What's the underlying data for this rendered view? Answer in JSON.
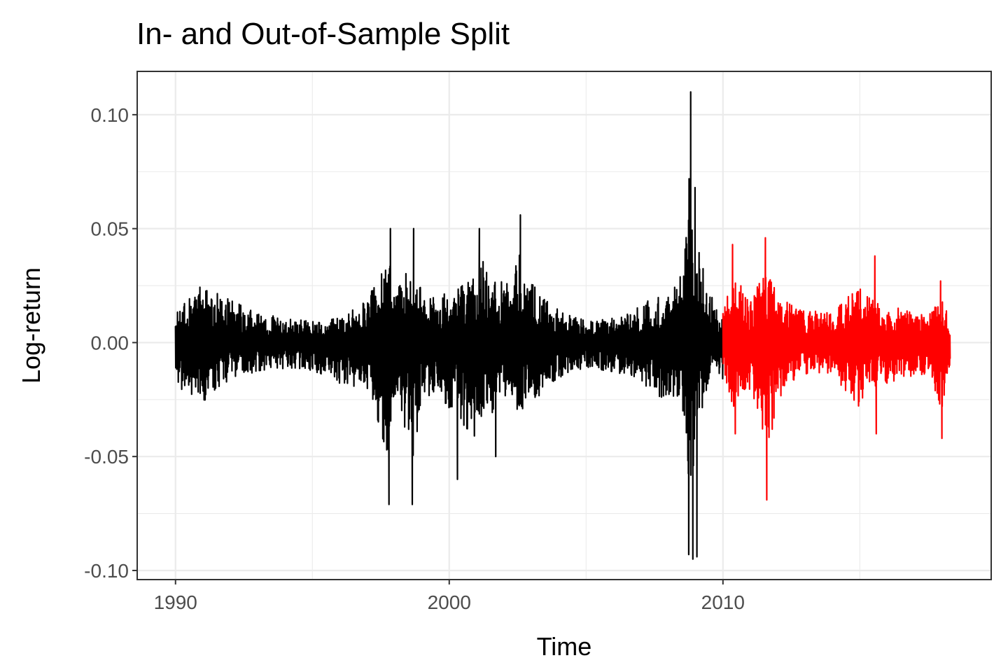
{
  "chart_data": {
    "type": "line",
    "title": "In- and Out-of-Sample Split",
    "xlabel": "Time",
    "ylabel": "Log-return",
    "xlim": [
      1988.6,
      2019.8
    ],
    "ylim": [
      -0.104,
      0.119
    ],
    "x_ticks": [
      1990,
      2000,
      2010
    ],
    "x_tick_labels": [
      "1990",
      "2000",
      "2010"
    ],
    "y_ticks": [
      -0.1,
      -0.05,
      0.0,
      0.05,
      0.1
    ],
    "y_tick_labels": [
      "-0.10",
      "-0.05",
      "0.00",
      "0.05",
      "0.10"
    ],
    "grid": true,
    "legend": "none",
    "series": [
      {
        "segment": "in-sample",
        "color": "#000000",
        "x_range": [
          1990.0,
          2010.0
        ],
        "envelope_x": [
          1990.0,
          1991.0,
          1992.0,
          1993.0,
          1994.0,
          1995.0,
          1996.0,
          1997.0,
          1997.8,
          1998.0,
          1998.7,
          1999.0,
          2000.0,
          2001.0,
          2001.2,
          2002.0,
          2002.6,
          2003.0,
          2004.0,
          2005.0,
          2006.0,
          2007.0,
          2007.6,
          2008.0,
          2008.5,
          2008.8,
          2008.9,
          2009.0,
          2009.5,
          2010.0
        ],
        "upper": [
          0.019,
          0.036,
          0.026,
          0.018,
          0.015,
          0.013,
          0.015,
          0.027,
          0.05,
          0.032,
          0.05,
          0.032,
          0.03,
          0.04,
          0.05,
          0.036,
          0.056,
          0.036,
          0.02,
          0.014,
          0.015,
          0.022,
          0.03,
          0.03,
          0.042,
          0.11,
          0.085,
          0.068,
          0.03,
          0.018
        ],
        "lower": [
          -0.026,
          -0.037,
          -0.022,
          -0.018,
          -0.016,
          -0.017,
          -0.025,
          -0.03,
          -0.071,
          -0.035,
          -0.071,
          -0.035,
          -0.04,
          -0.06,
          -0.05,
          -0.04,
          -0.043,
          -0.037,
          -0.022,
          -0.016,
          -0.018,
          -0.025,
          -0.034,
          -0.035,
          -0.04,
          -0.095,
          -0.094,
          -0.06,
          -0.03,
          -0.022
        ],
        "spikes": [
          {
            "x": 1997.8,
            "y": -0.071
          },
          {
            "x": 1997.85,
            "y": 0.05
          },
          {
            "x": 1998.65,
            "y": -0.071
          },
          {
            "x": 1998.7,
            "y": 0.05
          },
          {
            "x": 2000.3,
            "y": -0.06
          },
          {
            "x": 2001.1,
            "y": 0.05
          },
          {
            "x": 2001.7,
            "y": -0.05
          },
          {
            "x": 2002.6,
            "y": 0.056
          },
          {
            "x": 2008.75,
            "y": -0.093
          },
          {
            "x": 2008.82,
            "y": 0.11
          },
          {
            "x": 2008.9,
            "y": -0.095
          },
          {
            "x": 2008.98,
            "y": 0.068
          },
          {
            "x": 2009.05,
            "y": -0.094
          }
        ]
      },
      {
        "segment": "out-of-sample",
        "color": "#ff0000",
        "x_range": [
          2010.0,
          2018.3
        ],
        "envelope_x": [
          2010.0,
          2010.4,
          2011.0,
          2011.6,
          2012.0,
          2012.5,
          2013.0,
          2014.0,
          2015.0,
          2015.5,
          2016.0,
          2017.0,
          2017.5,
          2018.0,
          2018.3
        ],
        "upper": [
          0.018,
          0.043,
          0.025,
          0.046,
          0.028,
          0.024,
          0.02,
          0.018,
          0.038,
          0.025,
          0.024,
          0.018,
          0.018,
          0.027,
          0.014
        ],
        "lower": [
          -0.022,
          -0.04,
          -0.03,
          -0.069,
          -0.035,
          -0.025,
          -0.02,
          -0.02,
          -0.04,
          -0.028,
          -0.025,
          -0.02,
          -0.02,
          -0.042,
          -0.012
        ],
        "spikes": [
          {
            "x": 2010.35,
            "y": 0.043
          },
          {
            "x": 2010.45,
            "y": -0.04
          },
          {
            "x": 2011.55,
            "y": 0.046
          },
          {
            "x": 2011.6,
            "y": -0.069
          },
          {
            "x": 2011.8,
            "y": -0.038
          },
          {
            "x": 2015.55,
            "y": 0.038
          },
          {
            "x": 2015.6,
            "y": -0.04
          },
          {
            "x": 2017.95,
            "y": 0.027
          },
          {
            "x": 2018.0,
            "y": -0.042
          }
        ]
      }
    ]
  }
}
